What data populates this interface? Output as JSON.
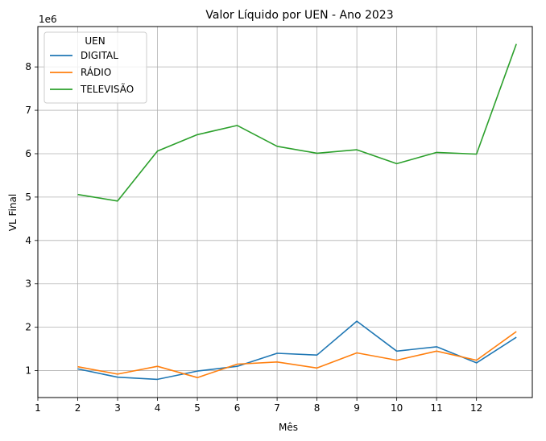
{
  "chart_data": {
    "type": "line",
    "title": "Valor Líquido por UEN - Ano 2023",
    "xlabel": "Mês",
    "ylabel": "VL Final",
    "y_offset_label": "1e6",
    "x_ticks": [
      1,
      2,
      3,
      4,
      5,
      6,
      7,
      8,
      9,
      10,
      11,
      12
    ],
    "y_ticks": [
      1,
      2,
      3,
      4,
      5,
      6,
      7,
      8
    ],
    "xlim": [
      1,
      13.4
    ],
    "ylim": [
      0.38,
      8.93
    ],
    "grid": true,
    "legend": {
      "title": "UEN",
      "placement": "upper-left"
    },
    "x": [
      2,
      3,
      4,
      5,
      6,
      7,
      8,
      9,
      10,
      11,
      12,
      13
    ],
    "series": [
      {
        "name": "DIGITAL",
        "color": "#1f77b4",
        "values": [
          1.04,
          0.85,
          0.8,
          0.99,
          1.1,
          1.4,
          1.36,
          2.14,
          1.45,
          1.55,
          1.18,
          1.77
        ]
      },
      {
        "name": "RÁDIO",
        "color": "#ff7f0e",
        "values": [
          1.09,
          0.92,
          1.1,
          0.84,
          1.15,
          1.2,
          1.06,
          1.41,
          1.24,
          1.45,
          1.24,
          1.9
        ]
      },
      {
        "name": "TELEVISÃO",
        "color": "#2ca02c",
        "values": [
          5.06,
          4.91,
          6.06,
          6.44,
          6.65,
          6.17,
          6.01,
          6.09,
          5.77,
          6.03,
          5.99,
          8.53
        ]
      }
    ]
  }
}
